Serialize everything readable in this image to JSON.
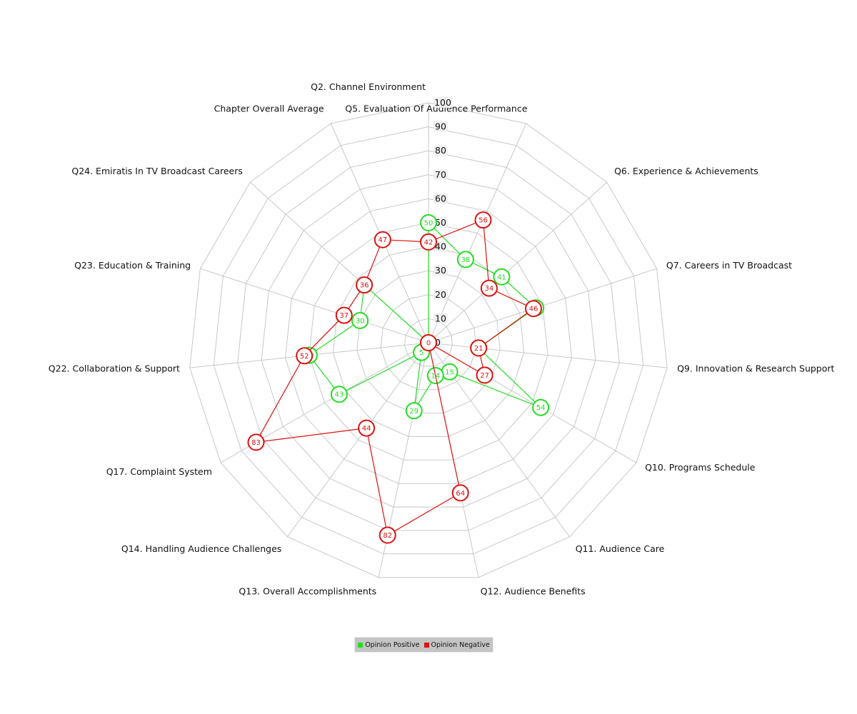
{
  "chart_data": {
    "type": "radar",
    "axes": [
      "Q2. Channel Environment",
      "Q5. Evaluation Of Audience Performance",
      "Q6. Experience & Achievements",
      "Q7. Careers in TV Broadcast",
      "Q9. Innovation & Research Support",
      "Q10. Programs Schedule",
      "Q11. Audience Care",
      "Q12. Audience Benefits",
      "Q13. Overall Accomplishments",
      "Q14. Handling Audience Challenges",
      "Q17. Complaint System",
      "Q22. Collaboration & Support",
      "Q23. Education & Training",
      "Q24. Emiratis In TV Broadcast Careers",
      "Chapter Overall Average"
    ],
    "ticks": [
      0,
      10,
      20,
      30,
      40,
      50,
      60,
      70,
      80,
      90,
      100
    ],
    "range": [
      0,
      100
    ],
    "series": [
      {
        "name": "Opinion Positive",
        "color": "#22dd22",
        "values": [
          50,
          38,
          41,
          47,
          21,
          54,
          15,
          14,
          29,
          5,
          43,
          50,
          30,
          36,
          0
        ]
      },
      {
        "name": "Opinion Negative",
        "color": "#dd1111",
        "values": [
          42,
          56,
          34,
          46,
          21,
          27,
          0,
          64,
          82,
          44,
          83,
          52,
          37,
          36,
          47
        ]
      }
    ],
    "legend_position": "bottom-center",
    "grid": true
  }
}
